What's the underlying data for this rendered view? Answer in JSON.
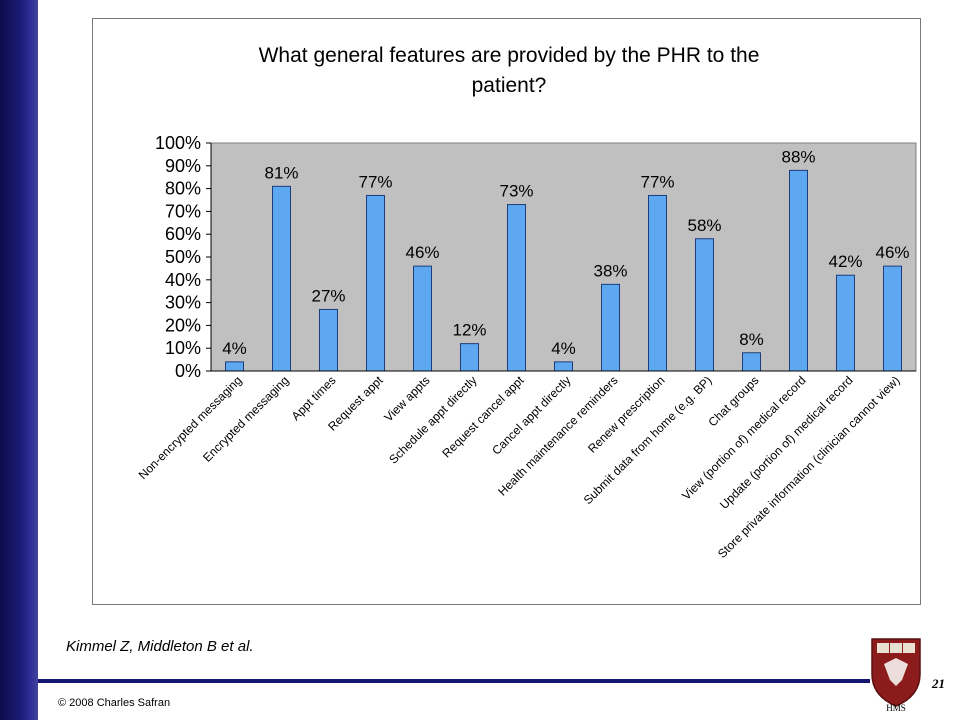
{
  "chart_data": {
    "type": "bar",
    "title": "What general features are provided by the PHR to the patient?",
    "title_lines": [
      "What general features are provided by the PHR to the",
      "patient?"
    ],
    "categories": [
      "Non-encrypted messaging",
      "Encrypted messaging",
      "Appt times",
      "Request appt",
      "View appts",
      "Schedule appt directly",
      "Request cancel appt",
      "Cancel appt directly",
      "Health maintenance reminders",
      "Renew prescription",
      "Submit data from home (e.g. BP)",
      "Chat groups",
      "View (portion of) medical record",
      "Update (portion of) medical record",
      "Store private information (clinician cannot view)"
    ],
    "values": [
      4,
      81,
      27,
      77,
      46,
      12,
      73,
      4,
      38,
      77,
      58,
      8,
      88,
      42,
      46
    ],
    "data_labels": [
      "4%",
      "81%",
      "27%",
      "77%",
      "46%",
      "12%",
      "73%",
      "4%",
      "38%",
      "77%",
      "58%",
      "8%",
      "88%",
      "42%",
      "46%"
    ],
    "y_ticks": [
      "0%",
      "10%",
      "20%",
      "30%",
      "40%",
      "50%",
      "60%",
      "70%",
      "80%",
      "90%",
      "100%"
    ],
    "ylim": [
      0,
      100
    ],
    "grid": false,
    "legend": "none",
    "colors": {
      "bar_fill": "#5ea8f2",
      "bar_stroke": "#1f3d7a",
      "plot_background": "#c0c0c0"
    }
  },
  "footer": {
    "citation": "Kimmel Z, Middleton B et al.",
    "copyright": "© 2008 Charles Safran",
    "page_number": "21"
  },
  "logo": {
    "label": "HMS"
  },
  "theme": {
    "accent": "#161672"
  }
}
